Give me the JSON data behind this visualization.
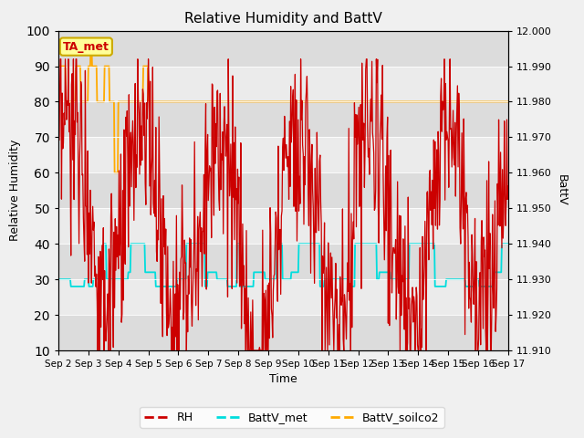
{
  "title": "Relative Humidity and BattV",
  "xlabel": "Time",
  "ylabel_left": "Relative Humidity",
  "ylabel_right": "BattV",
  "ylim_left": [
    10,
    100
  ],
  "ylim_right": [
    11.91,
    12.0
  ],
  "yticks_left": [
    10,
    20,
    30,
    40,
    50,
    60,
    70,
    80,
    90,
    100
  ],
  "yticks_right": [
    11.91,
    11.92,
    11.93,
    11.94,
    11.95,
    11.96,
    11.97,
    11.98,
    11.99,
    12.0
  ],
  "color_rh": "#cc0000",
  "color_battv_met": "#00dddd",
  "color_battv_soilco2": "#ffaa00",
  "annotation_text": "TA_met",
  "annotation_color": "#cc0000",
  "annotation_bg": "#ffff99",
  "annotation_border": "#ccaa00",
  "bg_stripe_dark": "#dcdcdc",
  "bg_stripe_light": "#ebebeb",
  "fig_bg": "#f0f0f0"
}
